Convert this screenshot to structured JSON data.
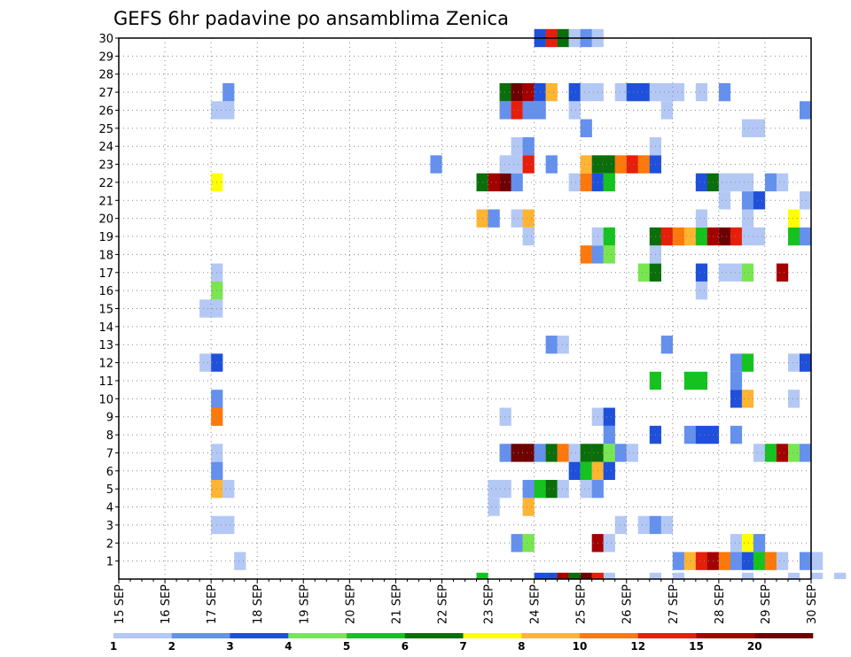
{
  "chart_data": {
    "type": "heatmap",
    "title": "GEFS 6hr padavine po ansamblima Zenica",
    "xlabel": "",
    "ylabel": "",
    "x_start": "15 SEP 00Z",
    "x_end": "30 SEP 00Z",
    "x_step_hours": 6,
    "x_ticks": [
      "15 SEP",
      "16 SEP",
      "17 SEP",
      "18 SEP",
      "19 SEP",
      "20 SEP",
      "21 SEP",
      "22 SEP",
      "23 SEP",
      "24 SEP",
      "25 SEP",
      "26 SEP",
      "27 SEP",
      "28 SEP",
      "29 SEP",
      "30 SEP"
    ],
    "y_ticks": [
      "1",
      "2",
      "3",
      "4",
      "5",
      "6",
      "7",
      "8",
      "9",
      "10",
      "11",
      "12",
      "13",
      "14",
      "15",
      "16",
      "17",
      "18",
      "19",
      "20",
      "21",
      "22",
      "23",
      "24",
      "25",
      "26",
      "27",
      "28",
      "29",
      "30"
    ],
    "ylim": [
      0,
      30
    ],
    "grid": true,
    "colorbar": {
      "labels": [
        "1",
        "2",
        "3",
        "4",
        "5",
        "6",
        "7",
        "8",
        "10",
        "12",
        "15",
        "20"
      ],
      "colors": [
        "#b4c8f5",
        "#6490ee",
        "#1e50dc",
        "#78e650",
        "#14c31e",
        "#0a6e0a",
        "#ffff00",
        "#ffb432",
        "#ff780a",
        "#e61e0a",
        "#a50000",
        "#6e0000"
      ]
    },
    "cells": [
      [
        0,
        "24 SEP 00Z",
        2
      ],
      [
        0,
        "25 SEP 12Z",
        0
      ],
      [
        0,
        "26 SEP 12Z",
        0
      ],
      [
        0,
        "27 SEP 00Z",
        0
      ],
      [
        0,
        "28 SEP 12Z",
        0
      ],
      [
        0,
        "29 SEP 12Z",
        0
      ],
      [
        0,
        "30 SEP 12Z",
        0
      ],
      [
        0,
        "30 SEP 00Z",
        0
      ],
      [
        0,
        "22 SEP 18Z",
        4
      ],
      [
        0,
        "24 SEP 06Z",
        2
      ],
      [
        0,
        "24 SEP 12Z",
        10
      ],
      [
        0,
        "24 SEP 18Z",
        5
      ],
      [
        0,
        "25 SEP 00Z",
        11
      ],
      [
        0,
        "25 SEP 06Z",
        9
      ],
      [
        1,
        "17 SEP 12Z",
        0
      ],
      [
        1,
        "27 SEP 00Z",
        1
      ],
      [
        1,
        "27 SEP 06Z",
        7
      ],
      [
        1,
        "27 SEP 12Z",
        9
      ],
      [
        1,
        "27 SEP 18Z",
        10
      ],
      [
        1,
        "28 SEP 00Z",
        8
      ],
      [
        1,
        "28 SEP 06Z",
        1
      ],
      [
        1,
        "28 SEP 12Z",
        2
      ],
      [
        1,
        "28 SEP 18Z",
        4
      ],
      [
        1,
        "29 SEP 00Z",
        8
      ],
      [
        1,
        "29 SEP 06Z",
        0
      ],
      [
        1,
        "29 SEP 18Z",
        1
      ],
      [
        1,
        "30 SEP 00Z",
        0
      ],
      [
        2,
        "23 SEP 12Z",
        1
      ],
      [
        2,
        "23 SEP 18Z",
        3
      ],
      [
        2,
        "25 SEP 06Z",
        10
      ],
      [
        2,
        "25 SEP 12Z",
        0
      ],
      [
        2,
        "28 SEP 06Z",
        0
      ],
      [
        2,
        "28 SEP 12Z",
        6
      ],
      [
        2,
        "28 SEP 18Z",
        1
      ],
      [
        3,
        "17 SEP 00Z",
        0
      ],
      [
        3,
        "17 SEP 06Z",
        0
      ],
      [
        3,
        "25 SEP 18Z",
        0
      ],
      [
        3,
        "26 SEP 06Z",
        0
      ],
      [
        3,
        "26 SEP 12Z",
        1
      ],
      [
        3,
        "26 SEP 18Z",
        0
      ],
      [
        4,
        "23 SEP 00Z",
        0
      ],
      [
        4,
        "23 SEP 18Z",
        7
      ],
      [
        5,
        "17 SEP 00Z",
        7
      ],
      [
        5,
        "17 SEP 06Z",
        0
      ],
      [
        5,
        "23 SEP 00Z",
        0
      ],
      [
        5,
        "23 SEP 06Z",
        0
      ],
      [
        5,
        "23 SEP 18Z",
        1
      ],
      [
        5,
        "24 SEP 00Z",
        4
      ],
      [
        5,
        "24 SEP 06Z",
        5
      ],
      [
        5,
        "24 SEP 12Z",
        0
      ],
      [
        5,
        "25 SEP 00Z",
        0
      ],
      [
        5,
        "25 SEP 06Z",
        1
      ],
      [
        6,
        "17 SEP 00Z",
        1
      ],
      [
        6,
        "24 SEP 18Z",
        2
      ],
      [
        6,
        "25 SEP 00Z",
        4
      ],
      [
        6,
        "25 SEP 06Z",
        7
      ],
      [
        6,
        "25 SEP 12Z",
        2
      ],
      [
        7,
        "17 SEP 00Z",
        0
      ],
      [
        7,
        "23 SEP 06Z",
        1
      ],
      [
        7,
        "23 SEP 12Z",
        11
      ],
      [
        7,
        "23 SEP 18Z",
        11
      ],
      [
        7,
        "24 SEP 00Z",
        1
      ],
      [
        7,
        "24 SEP 06Z",
        5
      ],
      [
        7,
        "24 SEP 12Z",
        8
      ],
      [
        7,
        "24 SEP 18Z",
        0
      ],
      [
        7,
        "25 SEP 00Z",
        5
      ],
      [
        7,
        "25 SEP 06Z",
        5
      ],
      [
        7,
        "25 SEP 12Z",
        3
      ],
      [
        7,
        "25 SEP 18Z",
        1
      ],
      [
        7,
        "26 SEP 00Z",
        0
      ],
      [
        7,
        "28 SEP 18Z",
        0
      ],
      [
        7,
        "29 SEP 00Z",
        4
      ],
      [
        7,
        "29 SEP 06Z",
        10
      ],
      [
        7,
        "29 SEP 12Z",
        3
      ],
      [
        7,
        "29 SEP 18Z",
        1
      ],
      [
        8,
        "25 SEP 12Z",
        1
      ],
      [
        8,
        "26 SEP 12Z",
        2
      ],
      [
        8,
        "27 SEP 06Z",
        1
      ],
      [
        8,
        "27 SEP 12Z",
        2
      ],
      [
        8,
        "27 SEP 18Z",
        2
      ],
      [
        8,
        "28 SEP 06Z",
        1
      ],
      [
        9,
        "17 SEP 00Z",
        8
      ],
      [
        9,
        "23 SEP 06Z",
        0
      ],
      [
        9,
        "25 SEP 06Z",
        0
      ],
      [
        9,
        "25 SEP 12Z",
        2
      ],
      [
        10,
        "17 SEP 00Z",
        1
      ],
      [
        10,
        "28 SEP 06Z",
        2
      ],
      [
        10,
        "28 SEP 12Z",
        7
      ],
      [
        10,
        "29 SEP 12Z",
        0
      ],
      [
        11,
        "26 SEP 12Z",
        4
      ],
      [
        11,
        "27 SEP 06Z",
        4
      ],
      [
        11,
        "27 SEP 12Z",
        4
      ],
      [
        11,
        "28 SEP 06Z",
        1
      ],
      [
        12,
        "16 SEP 18Z",
        0
      ],
      [
        12,
        "17 SEP 00Z",
        2
      ],
      [
        12,
        "28 SEP 06Z",
        1
      ],
      [
        12,
        "28 SEP 12Z",
        4
      ],
      [
        12,
        "29 SEP 12Z",
        0
      ],
      [
        12,
        "29 SEP 18Z",
        2
      ],
      [
        13,
        "24 SEP 06Z",
        1
      ],
      [
        13,
        "24 SEP 12Z",
        0
      ],
      [
        13,
        "26 SEP 18Z",
        1
      ],
      [
        15,
        "16 SEP 18Z",
        0
      ],
      [
        15,
        "17 SEP 00Z",
        0
      ],
      [
        16,
        "17 SEP 00Z",
        3
      ],
      [
        16,
        "27 SEP 12Z",
        0
      ],
      [
        17,
        "17 SEP 00Z",
        0
      ],
      [
        17,
        "26 SEP 06Z",
        3
      ],
      [
        17,
        "26 SEP 12Z",
        5
      ],
      [
        17,
        "27 SEP 12Z",
        2
      ],
      [
        17,
        "28 SEP 00Z",
        0
      ],
      [
        17,
        "28 SEP 06Z",
        0
      ],
      [
        17,
        "28 SEP 12Z",
        3
      ],
      [
        17,
        "29 SEP 06Z",
        10
      ],
      [
        18,
        "26 SEP 12Z",
        0
      ],
      [
        18,
        "25 SEP 00Z",
        8
      ],
      [
        18,
        "25 SEP 06Z",
        1
      ],
      [
        18,
        "25 SEP 12Z",
        3
      ],
      [
        19,
        "23 SEP 18Z",
        0
      ],
      [
        19,
        "25 SEP 06Z",
        0
      ],
      [
        19,
        "25 SEP 12Z",
        4
      ],
      [
        19,
        "26 SEP 12Z",
        5
      ],
      [
        19,
        "26 SEP 18Z",
        9
      ],
      [
        19,
        "27 SEP 00Z",
        8
      ],
      [
        19,
        "27 SEP 06Z",
        7
      ],
      [
        19,
        "27 SEP 12Z",
        4
      ],
      [
        19,
        "27 SEP 18Z",
        10
      ],
      [
        19,
        "28 SEP 00Z",
        11
      ],
      [
        19,
        "28 SEP 06Z",
        9
      ],
      [
        19,
        "28 SEP 12Z",
        0
      ],
      [
        19,
        "28 SEP 18Z",
        0
      ],
      [
        19,
        "29 SEP 12Z",
        4
      ],
      [
        19,
        "29 SEP 18Z",
        1
      ],
      [
        20,
        "22 SEP 18Z",
        7
      ],
      [
        20,
        "23 SEP 00Z",
        1
      ],
      [
        20,
        "23 SEP 12Z",
        0
      ],
      [
        20,
        "23 SEP 18Z",
        7
      ],
      [
        20,
        "27 SEP 12Z",
        0
      ],
      [
        20,
        "28 SEP 12Z",
        0
      ],
      [
        20,
        "29 SEP 12Z",
        6
      ],
      [
        21,
        "28 SEP 00Z",
        0
      ],
      [
        21,
        "28 SEP 12Z",
        1
      ],
      [
        21,
        "28 SEP 18Z",
        2
      ],
      [
        21,
        "29 SEP 18Z",
        0
      ],
      [
        22,
        "17 SEP 00Z",
        6
      ],
      [
        22,
        "22 SEP 18Z",
        5
      ],
      [
        22,
        "23 SEP 00Z",
        10
      ],
      [
        22,
        "23 SEP 06Z",
        11
      ],
      [
        22,
        "23 SEP 12Z",
        1
      ],
      [
        22,
        "24 SEP 18Z",
        0
      ],
      [
        22,
        "25 SEP 00Z",
        8
      ],
      [
        22,
        "25 SEP 06Z",
        2
      ],
      [
        22,
        "25 SEP 12Z",
        4
      ],
      [
        22,
        "27 SEP 12Z",
        2
      ],
      [
        22,
        "27 SEP 18Z",
        5
      ],
      [
        22,
        "28 SEP 00Z",
        0
      ],
      [
        22,
        "28 SEP 06Z",
        0
      ],
      [
        22,
        "28 SEP 12Z",
        0
      ],
      [
        22,
        "29 SEP 00Z",
        1
      ],
      [
        22,
        "29 SEP 06Z",
        0
      ],
      [
        23,
        "21 SEP 18Z",
        1
      ],
      [
        23,
        "23 SEP 06Z",
        0
      ],
      [
        23,
        "23 SEP 12Z",
        0
      ],
      [
        23,
        "23 SEP 18Z",
        9
      ],
      [
        23,
        "24 SEP 06Z",
        1
      ],
      [
        23,
        "25 SEP 00Z",
        7
      ],
      [
        23,
        "25 SEP 06Z",
        5
      ],
      [
        23,
        "25 SEP 12Z",
        5
      ],
      [
        23,
        "25 SEP 18Z",
        8
      ],
      [
        23,
        "26 SEP 00Z",
        9
      ],
      [
        23,
        "26 SEP 06Z",
        8
      ],
      [
        23,
        "26 SEP 12Z",
        2
      ],
      [
        24,
        "23 SEP 12Z",
        0
      ],
      [
        24,
        "23 SEP 18Z",
        1
      ],
      [
        24,
        "26 SEP 12Z",
        0
      ],
      [
        25,
        "25 SEP 00Z",
        1
      ],
      [
        25,
        "28 SEP 12Z",
        0
      ],
      [
        25,
        "28 SEP 18Z",
        0
      ],
      [
        26,
        "17 SEP 00Z",
        0
      ],
      [
        26,
        "17 SEP 06Z",
        0
      ],
      [
        26,
        "23 SEP 06Z",
        1
      ],
      [
        26,
        "23 SEP 12Z",
        9
      ],
      [
        26,
        "23 SEP 18Z",
        1
      ],
      [
        26,
        "24 SEP 00Z",
        1
      ],
      [
        26,
        "24 SEP 18Z",
        0
      ],
      [
        26,
        "26 SEP 18Z",
        0
      ],
      [
        26,
        "29 SEP 18Z",
        1
      ],
      [
        27,
        "17 SEP 06Z",
        1
      ],
      [
        27,
        "23 SEP 06Z",
        5
      ],
      [
        27,
        "23 SEP 12Z",
        11
      ],
      [
        27,
        "23 SEP 18Z",
        10
      ],
      [
        27,
        "24 SEP 00Z",
        2
      ],
      [
        27,
        "24 SEP 06Z",
        7
      ],
      [
        27,
        "24 SEP 18Z",
        2
      ],
      [
        27,
        "25 SEP 00Z",
        0
      ],
      [
        27,
        "25 SEP 06Z",
        0
      ],
      [
        27,
        "25 SEP 18Z",
        0
      ],
      [
        27,
        "26 SEP 00Z",
        2
      ],
      [
        27,
        "26 SEP 06Z",
        2
      ],
      [
        27,
        "26 SEP 12Z",
        0
      ],
      [
        27,
        "26 SEP 18Z",
        0
      ],
      [
        27,
        "27 SEP 00Z",
        0
      ],
      [
        27,
        "27 SEP 12Z",
        0
      ],
      [
        27,
        "28 SEP 00Z",
        1
      ],
      [
        30,
        "24 SEP 00Z",
        2
      ],
      [
        30,
        "24 SEP 06Z",
        9
      ],
      [
        30,
        "24 SEP 12Z",
        5
      ],
      [
        30,
        "24 SEP 18Z",
        0
      ],
      [
        30,
        "25 SEP 00Z",
        1
      ],
      [
        30,
        "25 SEP 06Z",
        0
      ]
    ]
  }
}
